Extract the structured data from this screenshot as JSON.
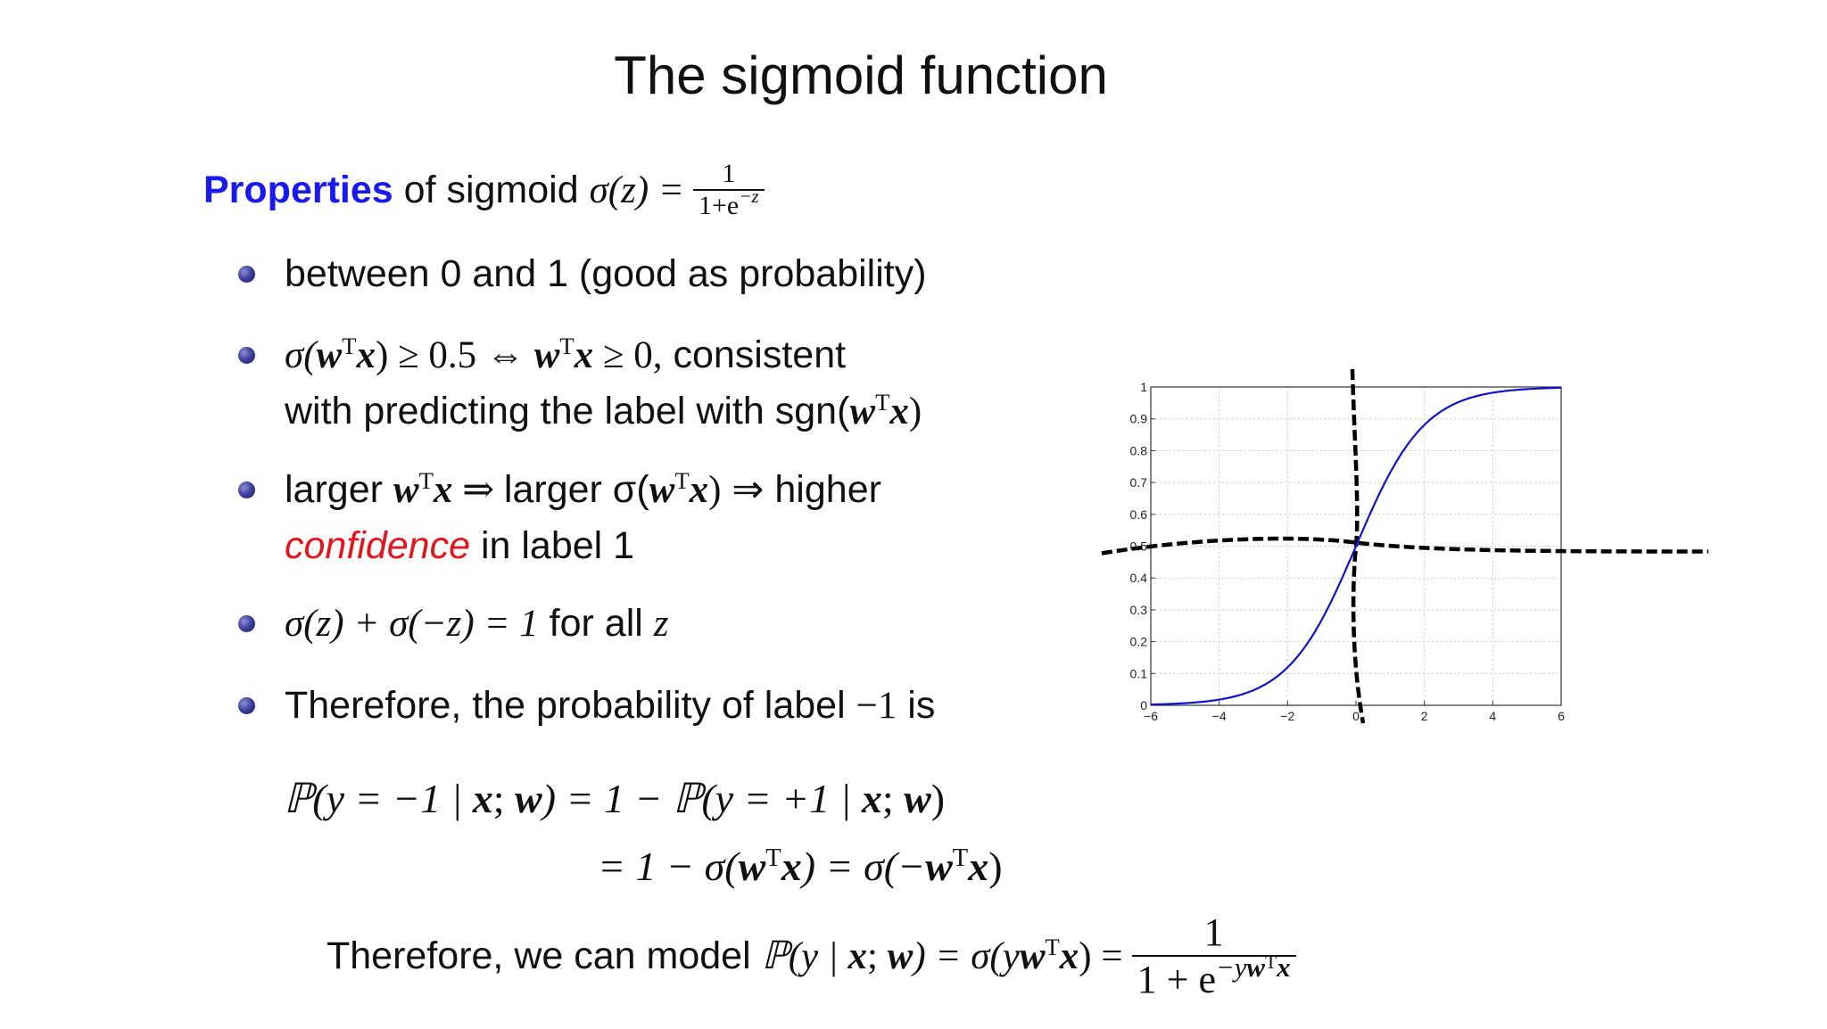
{
  "slide": {
    "title": "The sigmoid function",
    "heading": {
      "keyword": "Properties",
      "text": "of sigmoid",
      "formula_lhs": "σ(z) =",
      "numerator": "1",
      "denominator": "1+e",
      "denominator_exp": "−z"
    },
    "bullets": [
      {
        "line1": "between 0 and 1 (good as probability)"
      },
      {
        "line1_math": "σ(",
        "w": "w",
        "T": "T",
        "x": "x",
        "line1_rel": ") ≥ 0.5 ⇔ ",
        "line1_rel2": " ≥ 0,",
        "line1_text": " consistent",
        "line2_text": "with predicting the label with sgn(",
        "line2_close": ")"
      },
      {
        "line1_text_a": "larger ",
        "line1_arrow": " ⇒ ",
        "line1_text_b": "larger σ(",
        "line1_close": ")",
        "line1_text_c": " ⇒ higher",
        "line2_emph": "confidence",
        "line2_text": " in label 1"
      },
      {
        "line1_math": "σ(z) + σ(−z) = 1",
        "line1_text": " for all ",
        "var": "z"
      },
      {
        "line1_text": "Therefore, the probability of label ",
        "line1_math": "−1",
        "line1_tail": " is"
      }
    ],
    "equation": {
      "line1_a": "ℙ(y = −1 | ",
      "line1_b": "; ",
      "line1_c": ") = 1 − ℙ(y = +1 | ",
      "line1_d": "; ",
      "line1_e": ")",
      "line2_a": "= 1 − σ(",
      "line2_b": ") = σ(−",
      "line2_c": ")"
    },
    "final": {
      "text": "Therefore, we can model",
      "math_a": "ℙ(y | ",
      "math_b": "; ",
      "math_c": ") = σ(y",
      "math_d": ") =",
      "numerator": "1",
      "denominator": "1 + e",
      "denominator_exp": "−y"
    }
  },
  "chart_data": {
    "type": "line",
    "function": "sigmoid",
    "x_range": [
      -6,
      6
    ],
    "y_range": [
      0,
      1
    ],
    "x_ticks": [
      "−6",
      "−4",
      "−2",
      "0",
      "2",
      "4",
      "6"
    ],
    "y_ticks": [
      "0",
      "0.1",
      "0.2",
      "0.3",
      "0.4",
      "0.5",
      "0.6",
      "0.7",
      "0.8",
      "0.9",
      "1"
    ],
    "grid": true,
    "series": [
      {
        "color": "#1212cc",
        "x": [
          -6,
          -5,
          -4,
          -3,
          -2,
          -1,
          0,
          1,
          2,
          3,
          4,
          5,
          6
        ],
        "y": [
          0.0025,
          0.0067,
          0.018,
          0.047,
          0.119,
          0.269,
          0.5,
          0.731,
          0.881,
          0.953,
          0.982,
          0.9933,
          0.9975
        ]
      }
    ],
    "annotations": [
      {
        "type": "dashed-curve",
        "orientation": "vertical",
        "through_x": 0
      },
      {
        "type": "dashed-curve",
        "orientation": "horizontal",
        "through_y": 0.5
      }
    ]
  }
}
